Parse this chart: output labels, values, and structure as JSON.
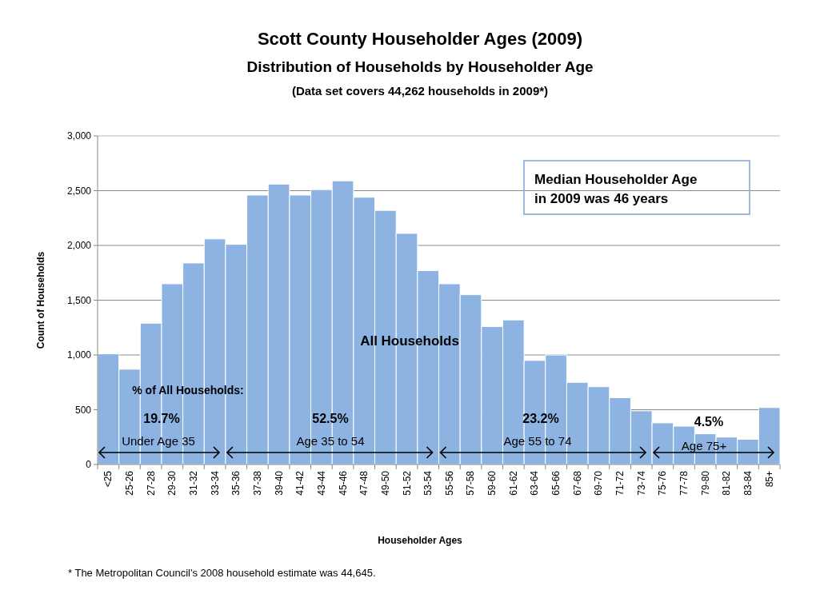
{
  "chart_data": {
    "type": "bar",
    "title": "Scott County Householder Ages (2009)",
    "subtitle": "Distribution of Households by Householder Age\n(Data set covers 44,262 households in 2009*)",
    "xlabel": "Householder Ages",
    "ylabel": "Count of Households",
    "categories": [
      "<25",
      "25-26",
      "27-28",
      "29-30",
      "31-32",
      "33-34",
      "35-36",
      "37-38",
      "39-40",
      "41-42",
      "43-44",
      "45-46",
      "47-48",
      "49-50",
      "51-52",
      "53-54",
      "55-56",
      "57-58",
      "59-60",
      "61-62",
      "63-64",
      "65-66",
      "67-68",
      "69-70",
      "71-72",
      "73-74",
      "75-76",
      "77-78",
      "79-80",
      "81-82",
      "83-84",
      "85+"
    ],
    "values": [
      1010,
      870,
      1290,
      1650,
      1840,
      2060,
      2010,
      2460,
      2560,
      2460,
      2510,
      2590,
      2440,
      2320,
      2110,
      1770,
      1650,
      1550,
      1260,
      1320,
      950,
      1000,
      750,
      710,
      610,
      490,
      380,
      350,
      280,
      250,
      230,
      520
    ],
    "color": "#8db3e2",
    "ylim": [
      0,
      3000
    ],
    "yticks": [
      {
        "value": 0,
        "label": "0"
      },
      {
        "value": 500,
        "label": "500"
      },
      {
        "value": 1000,
        "label": "1,000"
      },
      {
        "value": 1500,
        "label": "1,500"
      },
      {
        "value": 2000,
        "label": "2,000"
      },
      {
        "value": 2500,
        "label": "2,500"
      },
      {
        "value": 3000,
        "label": "3,000"
      }
    ],
    "grid": "y",
    "annotations": [
      "Median Householder Age\nin 2009 was 46 years",
      "All Households",
      "% of All Households:",
      "19.7%",
      "Under Age 35",
      "52.5%",
      "Age 35 to 54",
      "23.2%",
      "Age 55 to 74",
      "4.5%",
      "Age 75+",
      "* The Metropolitan Council's 2008 household estimate was 44,645."
    ]
  }
}
